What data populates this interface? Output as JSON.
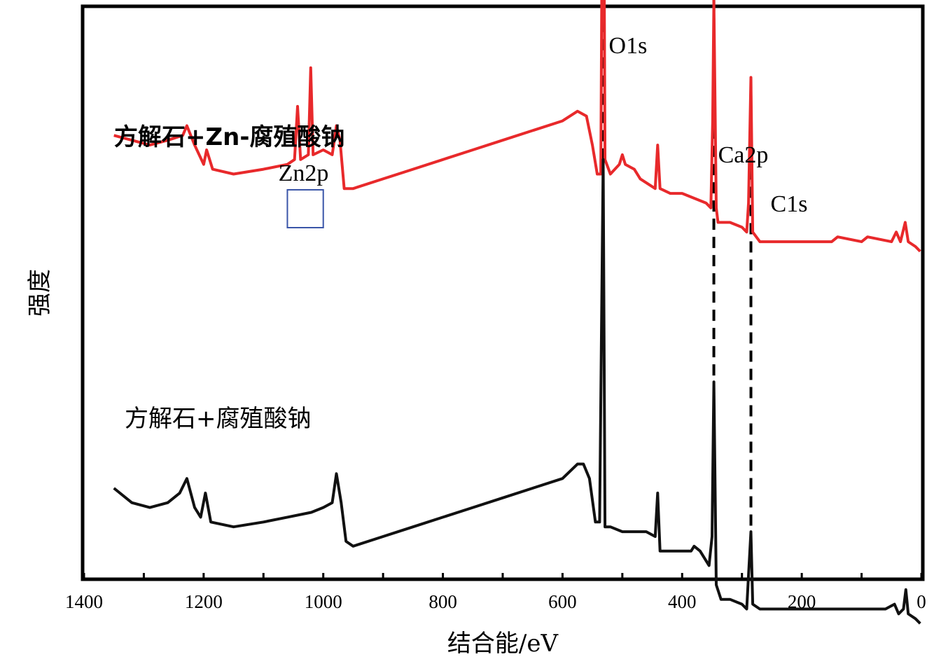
{
  "chart_data": {
    "type": "line",
    "xlabel": "结合能/eV",
    "ylabel": "强度",
    "xlim": [
      1400,
      0
    ],
    "x_ticks": [
      1400,
      1200,
      1000,
      800,
      600,
      400,
      200,
      0
    ],
    "y_ticks_shown": false,
    "grid": false,
    "series": [
      {
        "name": "方解石+Zn-腐殖酸钠",
        "color": "#e8292b",
        "offset": 0.73,
        "points": [
          [
            1350,
            0.0
          ],
          [
            1320,
            -0.01
          ],
          [
            1290,
            -0.02
          ],
          [
            1260,
            -0.01
          ],
          [
            1235,
            0.0
          ],
          [
            1228,
            0.02
          ],
          [
            1215,
            -0.02
          ],
          [
            1200,
            -0.06
          ],
          [
            1195,
            -0.03
          ],
          [
            1185,
            -0.07
          ],
          [
            1150,
            -0.08
          ],
          [
            1100,
            -0.07
          ],
          [
            1060,
            -0.06
          ],
          [
            1048,
            -0.05
          ],
          [
            1043,
            0.06
          ],
          [
            1038,
            -0.05
          ],
          [
            1025,
            -0.04
          ],
          [
            1021,
            0.14
          ],
          [
            1017,
            -0.04
          ],
          [
            1000,
            -0.03
          ],
          [
            985,
            -0.04
          ],
          [
            978,
            0.02
          ],
          [
            972,
            -0.01
          ],
          [
            965,
            -0.11
          ],
          [
            950,
            -0.11
          ],
          [
            900,
            -0.09
          ],
          [
            850,
            -0.07
          ],
          [
            800,
            -0.05
          ],
          [
            750,
            -0.03
          ],
          [
            700,
            -0.01
          ],
          [
            650,
            0.01
          ],
          [
            600,
            0.03
          ],
          [
            575,
            0.05
          ],
          [
            560,
            0.04
          ],
          [
            550,
            -0.02
          ],
          [
            542,
            -0.08
          ],
          [
            536,
            -0.08
          ],
          [
            532,
            0.84
          ],
          [
            529,
            -0.05
          ],
          [
            520,
            -0.08
          ],
          [
            505,
            -0.06
          ],
          [
            500,
            -0.04
          ],
          [
            495,
            -0.06
          ],
          [
            480,
            -0.07
          ],
          [
            470,
            -0.09
          ],
          [
            445,
            -0.11
          ],
          [
            441,
            -0.02
          ],
          [
            437,
            -0.11
          ],
          [
            420,
            -0.12
          ],
          [
            400,
            -0.12
          ],
          [
            380,
            -0.13
          ],
          [
            360,
            -0.14
          ],
          [
            352,
            -0.15
          ],
          [
            349,
            0.03
          ],
          [
            347,
            0.28
          ],
          [
            343,
            -0.15
          ],
          [
            340,
            -0.18
          ],
          [
            320,
            -0.18
          ],
          [
            300,
            -0.19
          ],
          [
            292,
            -0.2
          ],
          [
            289,
            -0.14
          ],
          [
            285,
            0.12
          ],
          [
            282,
            -0.2
          ],
          [
            270,
            -0.22
          ],
          [
            200,
            -0.22
          ],
          [
            150,
            -0.22
          ],
          [
            140,
            -0.21
          ],
          [
            100,
            -0.22
          ],
          [
            90,
            -0.21
          ],
          [
            50,
            -0.22
          ],
          [
            42,
            -0.2
          ],
          [
            35,
            -0.22
          ],
          [
            27,
            -0.18
          ],
          [
            22,
            -0.22
          ],
          [
            10,
            -0.23
          ],
          [
            2,
            -0.24
          ]
        ]
      },
      {
        "name": "方解石+腐殖酸钠",
        "color": "#111111",
        "offset": 0.0,
        "points": [
          [
            1350,
            0.0
          ],
          [
            1320,
            -0.03
          ],
          [
            1290,
            -0.04
          ],
          [
            1260,
            -0.03
          ],
          [
            1240,
            -0.01
          ],
          [
            1228,
            0.02
          ],
          [
            1215,
            -0.04
          ],
          [
            1205,
            -0.06
          ],
          [
            1197,
            -0.01
          ],
          [
            1188,
            -0.07
          ],
          [
            1150,
            -0.08
          ],
          [
            1100,
            -0.07
          ],
          [
            1060,
            -0.06
          ],
          [
            1020,
            -0.05
          ],
          [
            1000,
            -0.04
          ],
          [
            985,
            -0.03
          ],
          [
            978,
            0.03
          ],
          [
            970,
            -0.03
          ],
          [
            962,
            -0.11
          ],
          [
            950,
            -0.12
          ],
          [
            900,
            -0.1
          ],
          [
            850,
            -0.08
          ],
          [
            800,
            -0.06
          ],
          [
            750,
            -0.04
          ],
          [
            700,
            -0.02
          ],
          [
            650,
            0.0
          ],
          [
            600,
            0.02
          ],
          [
            575,
            0.05
          ],
          [
            565,
            0.05
          ],
          [
            555,
            0.02
          ],
          [
            545,
            -0.07
          ],
          [
            538,
            -0.07
          ],
          [
            532,
            0.68
          ],
          [
            529,
            -0.08
          ],
          [
            520,
            -0.08
          ],
          [
            500,
            -0.09
          ],
          [
            460,
            -0.09
          ],
          [
            445,
            -0.1
          ],
          [
            441,
            -0.01
          ],
          [
            437,
            -0.13
          ],
          [
            420,
            -0.13
          ],
          [
            400,
            -0.13
          ],
          [
            385,
            -0.13
          ],
          [
            380,
            -0.12
          ],
          [
            370,
            -0.13
          ],
          [
            355,
            -0.16
          ],
          [
            350,
            -0.1
          ],
          [
            347,
            0.22
          ],
          [
            343,
            -0.2
          ],
          [
            335,
            -0.23
          ],
          [
            320,
            -0.23
          ],
          [
            300,
            -0.24
          ],
          [
            292,
            -0.25
          ],
          [
            289,
            -0.18
          ],
          [
            285,
            -0.09
          ],
          [
            282,
            -0.24
          ],
          [
            270,
            -0.25
          ],
          [
            200,
            -0.25
          ],
          [
            100,
            -0.25
          ],
          [
            60,
            -0.25
          ],
          [
            45,
            -0.24
          ],
          [
            38,
            -0.26
          ],
          [
            30,
            -0.25
          ],
          [
            26,
            -0.21
          ],
          [
            22,
            -0.26
          ],
          [
            10,
            -0.27
          ],
          [
            2,
            -0.28
          ]
        ]
      }
    ],
    "annotations": [
      {
        "text": "O1s",
        "x": 532
      },
      {
        "text": "Ca2p",
        "x": 347
      },
      {
        "text": "C1s",
        "x": 285
      },
      {
        "text": "Zn2p",
        "x": 1033,
        "box_x_range": [
          1060,
          1000
        ]
      }
    ],
    "reference_lines": [
      532,
      347,
      285
    ]
  }
}
